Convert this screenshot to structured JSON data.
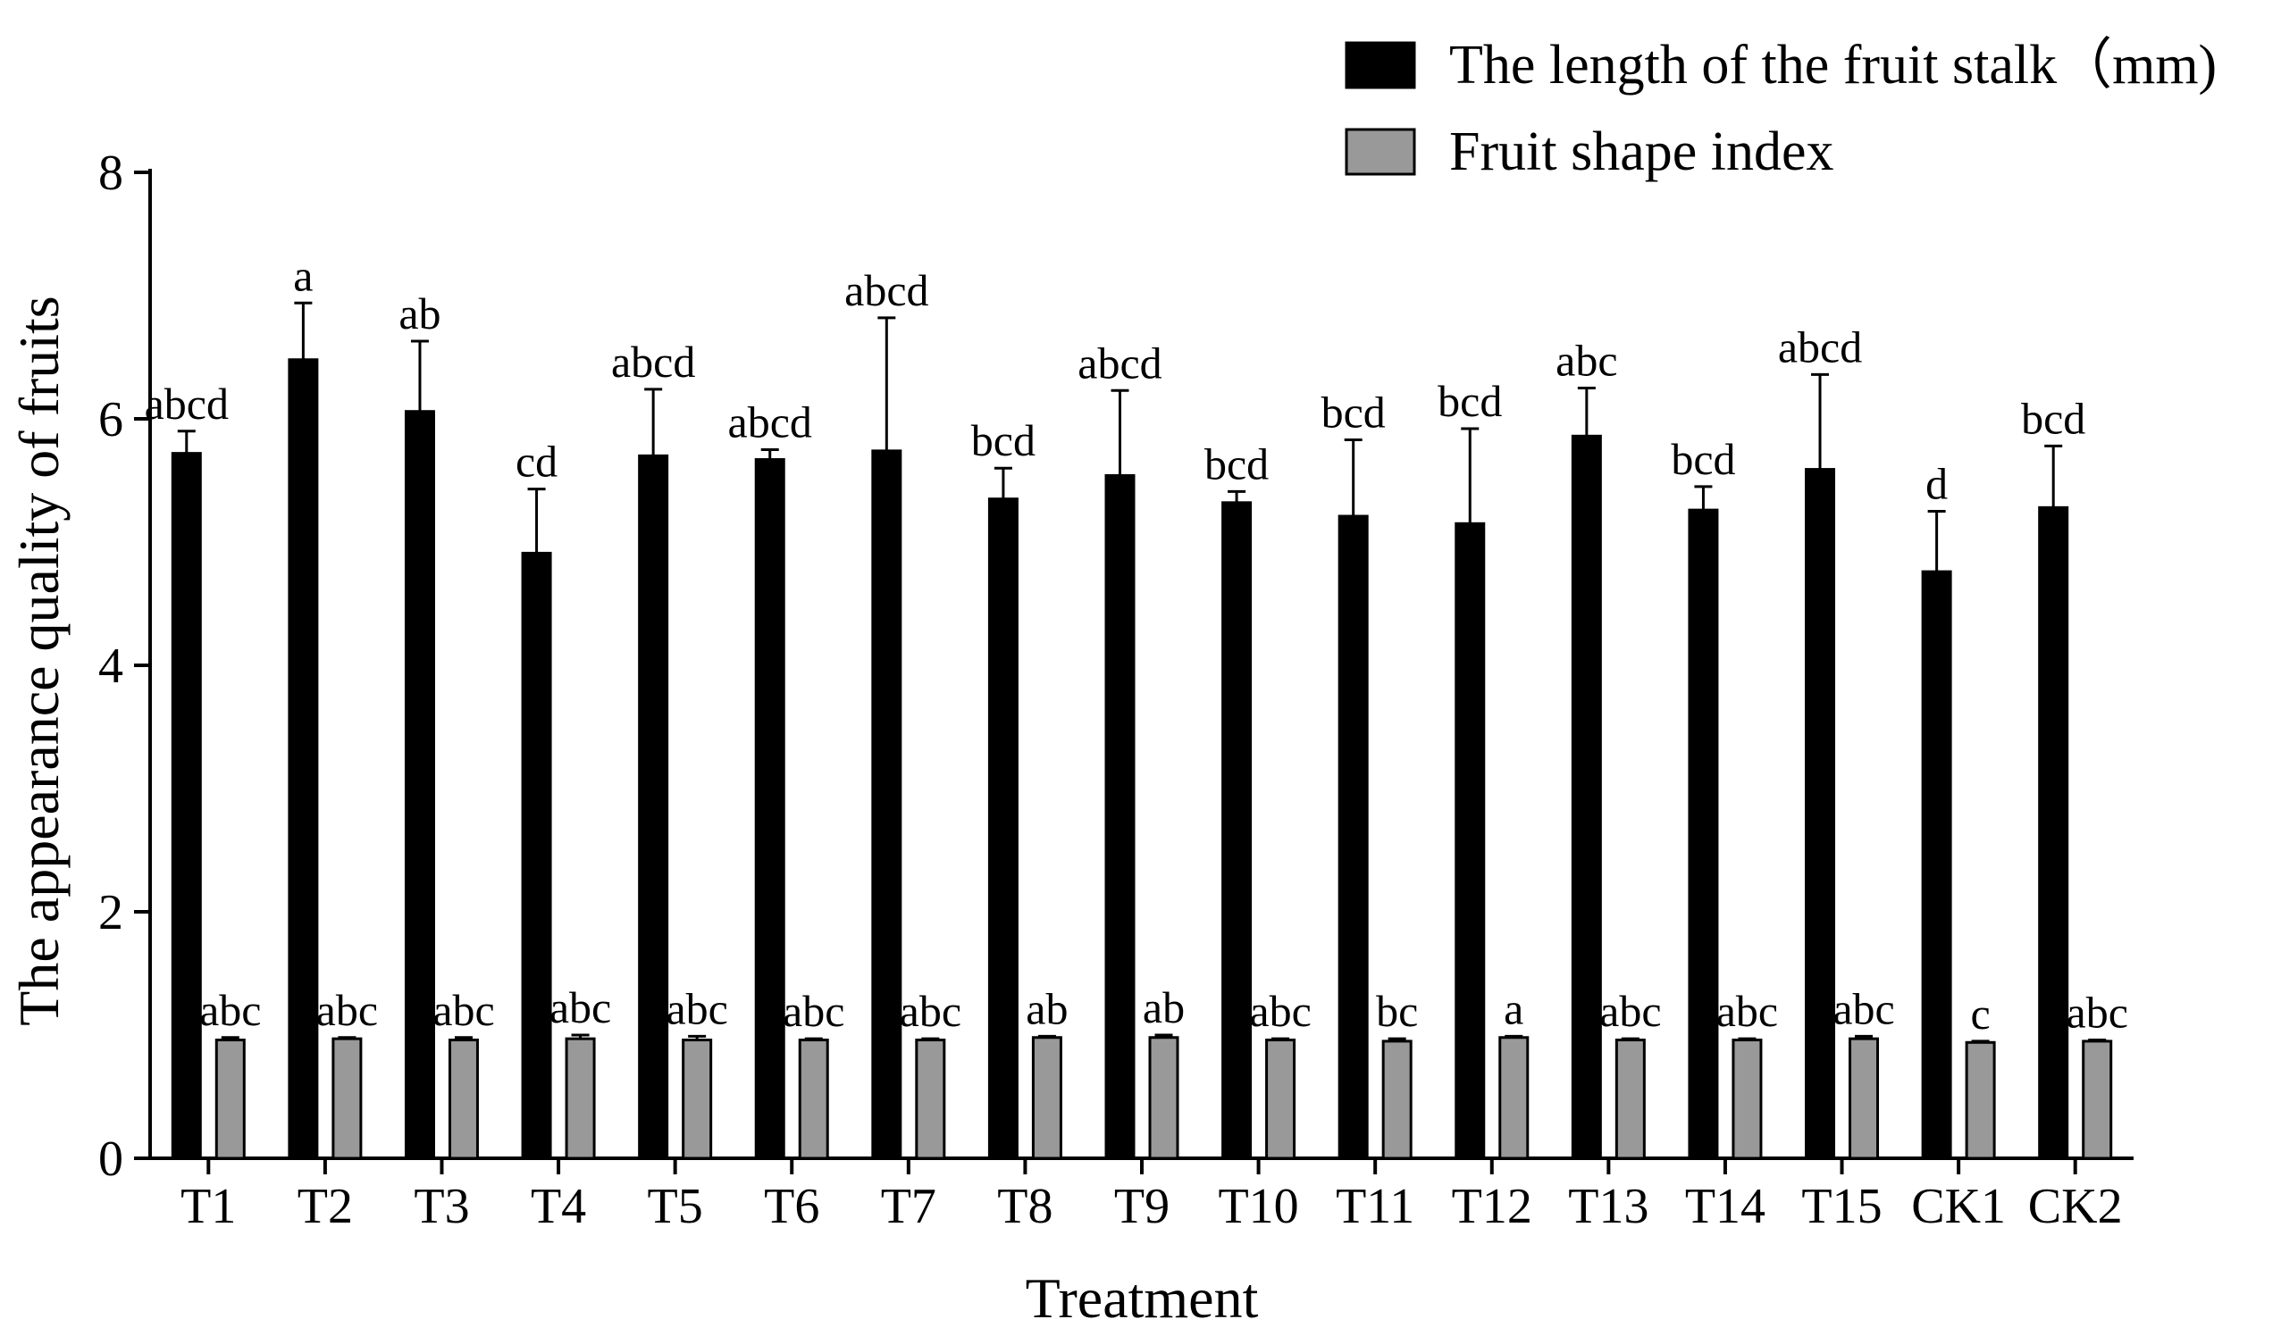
{
  "chart_data": {
    "type": "bar",
    "title": "",
    "xlabel": "Treatment",
    "ylabel": "The appearance quality of fruits",
    "ylim": [
      0,
      8
    ],
    "yticks": [
      0,
      2,
      4,
      6,
      8
    ],
    "grid": false,
    "legend_position": "top-right",
    "categories": [
      "T1",
      "T2",
      "T3",
      "T4",
      "T5",
      "T6",
      "T7",
      "T8",
      "T9",
      "T10",
      "T11",
      "T12",
      "T13",
      "T14",
      "T15",
      "CK1",
      "CK2"
    ],
    "series": [
      {
        "name": "The length of the fruit stalk（mm)",
        "color": "#000000",
        "values": [
          5.72,
          6.48,
          6.06,
          4.91,
          5.7,
          5.67,
          5.74,
          5.35,
          5.54,
          5.32,
          5.21,
          5.15,
          5.86,
          5.26,
          5.59,
          4.76,
          5.28
        ],
        "errors": [
          0.18,
          0.46,
          0.57,
          0.52,
          0.54,
          0.08,
          1.08,
          0.25,
          0.69,
          0.09,
          0.62,
          0.77,
          0.39,
          0.19,
          0.77,
          0.49,
          0.5
        ],
        "labels": [
          "abcd",
          "a",
          "ab",
          "cd",
          "abcd",
          "abcd",
          "abcd",
          "bcd",
          "abcd",
          "bcd",
          "bcd",
          "bcd",
          "abc",
          "bcd",
          "abcd",
          "d",
          "bcd"
        ]
      },
      {
        "name": "Fruit shape index",
        "color": "#999999",
        "values": [
          0.96,
          0.97,
          0.96,
          0.97,
          0.96,
          0.96,
          0.96,
          0.98,
          0.98,
          0.96,
          0.95,
          0.98,
          0.96,
          0.96,
          0.97,
          0.94,
          0.95
        ],
        "errors": [
          0.02,
          0.01,
          0.02,
          0.03,
          0.03,
          0.01,
          0.01,
          0.01,
          0.02,
          0.01,
          0.02,
          0.01,
          0.01,
          0.01,
          0.02,
          0.01,
          0.01
        ],
        "labels": [
          "abc",
          "abc",
          "abc",
          "abc",
          "abc",
          "abc",
          "abc",
          "ab",
          "ab",
          "abc",
          "bc",
          "a",
          "abc",
          "abc",
          "abc",
          "c",
          "abc"
        ]
      }
    ]
  }
}
